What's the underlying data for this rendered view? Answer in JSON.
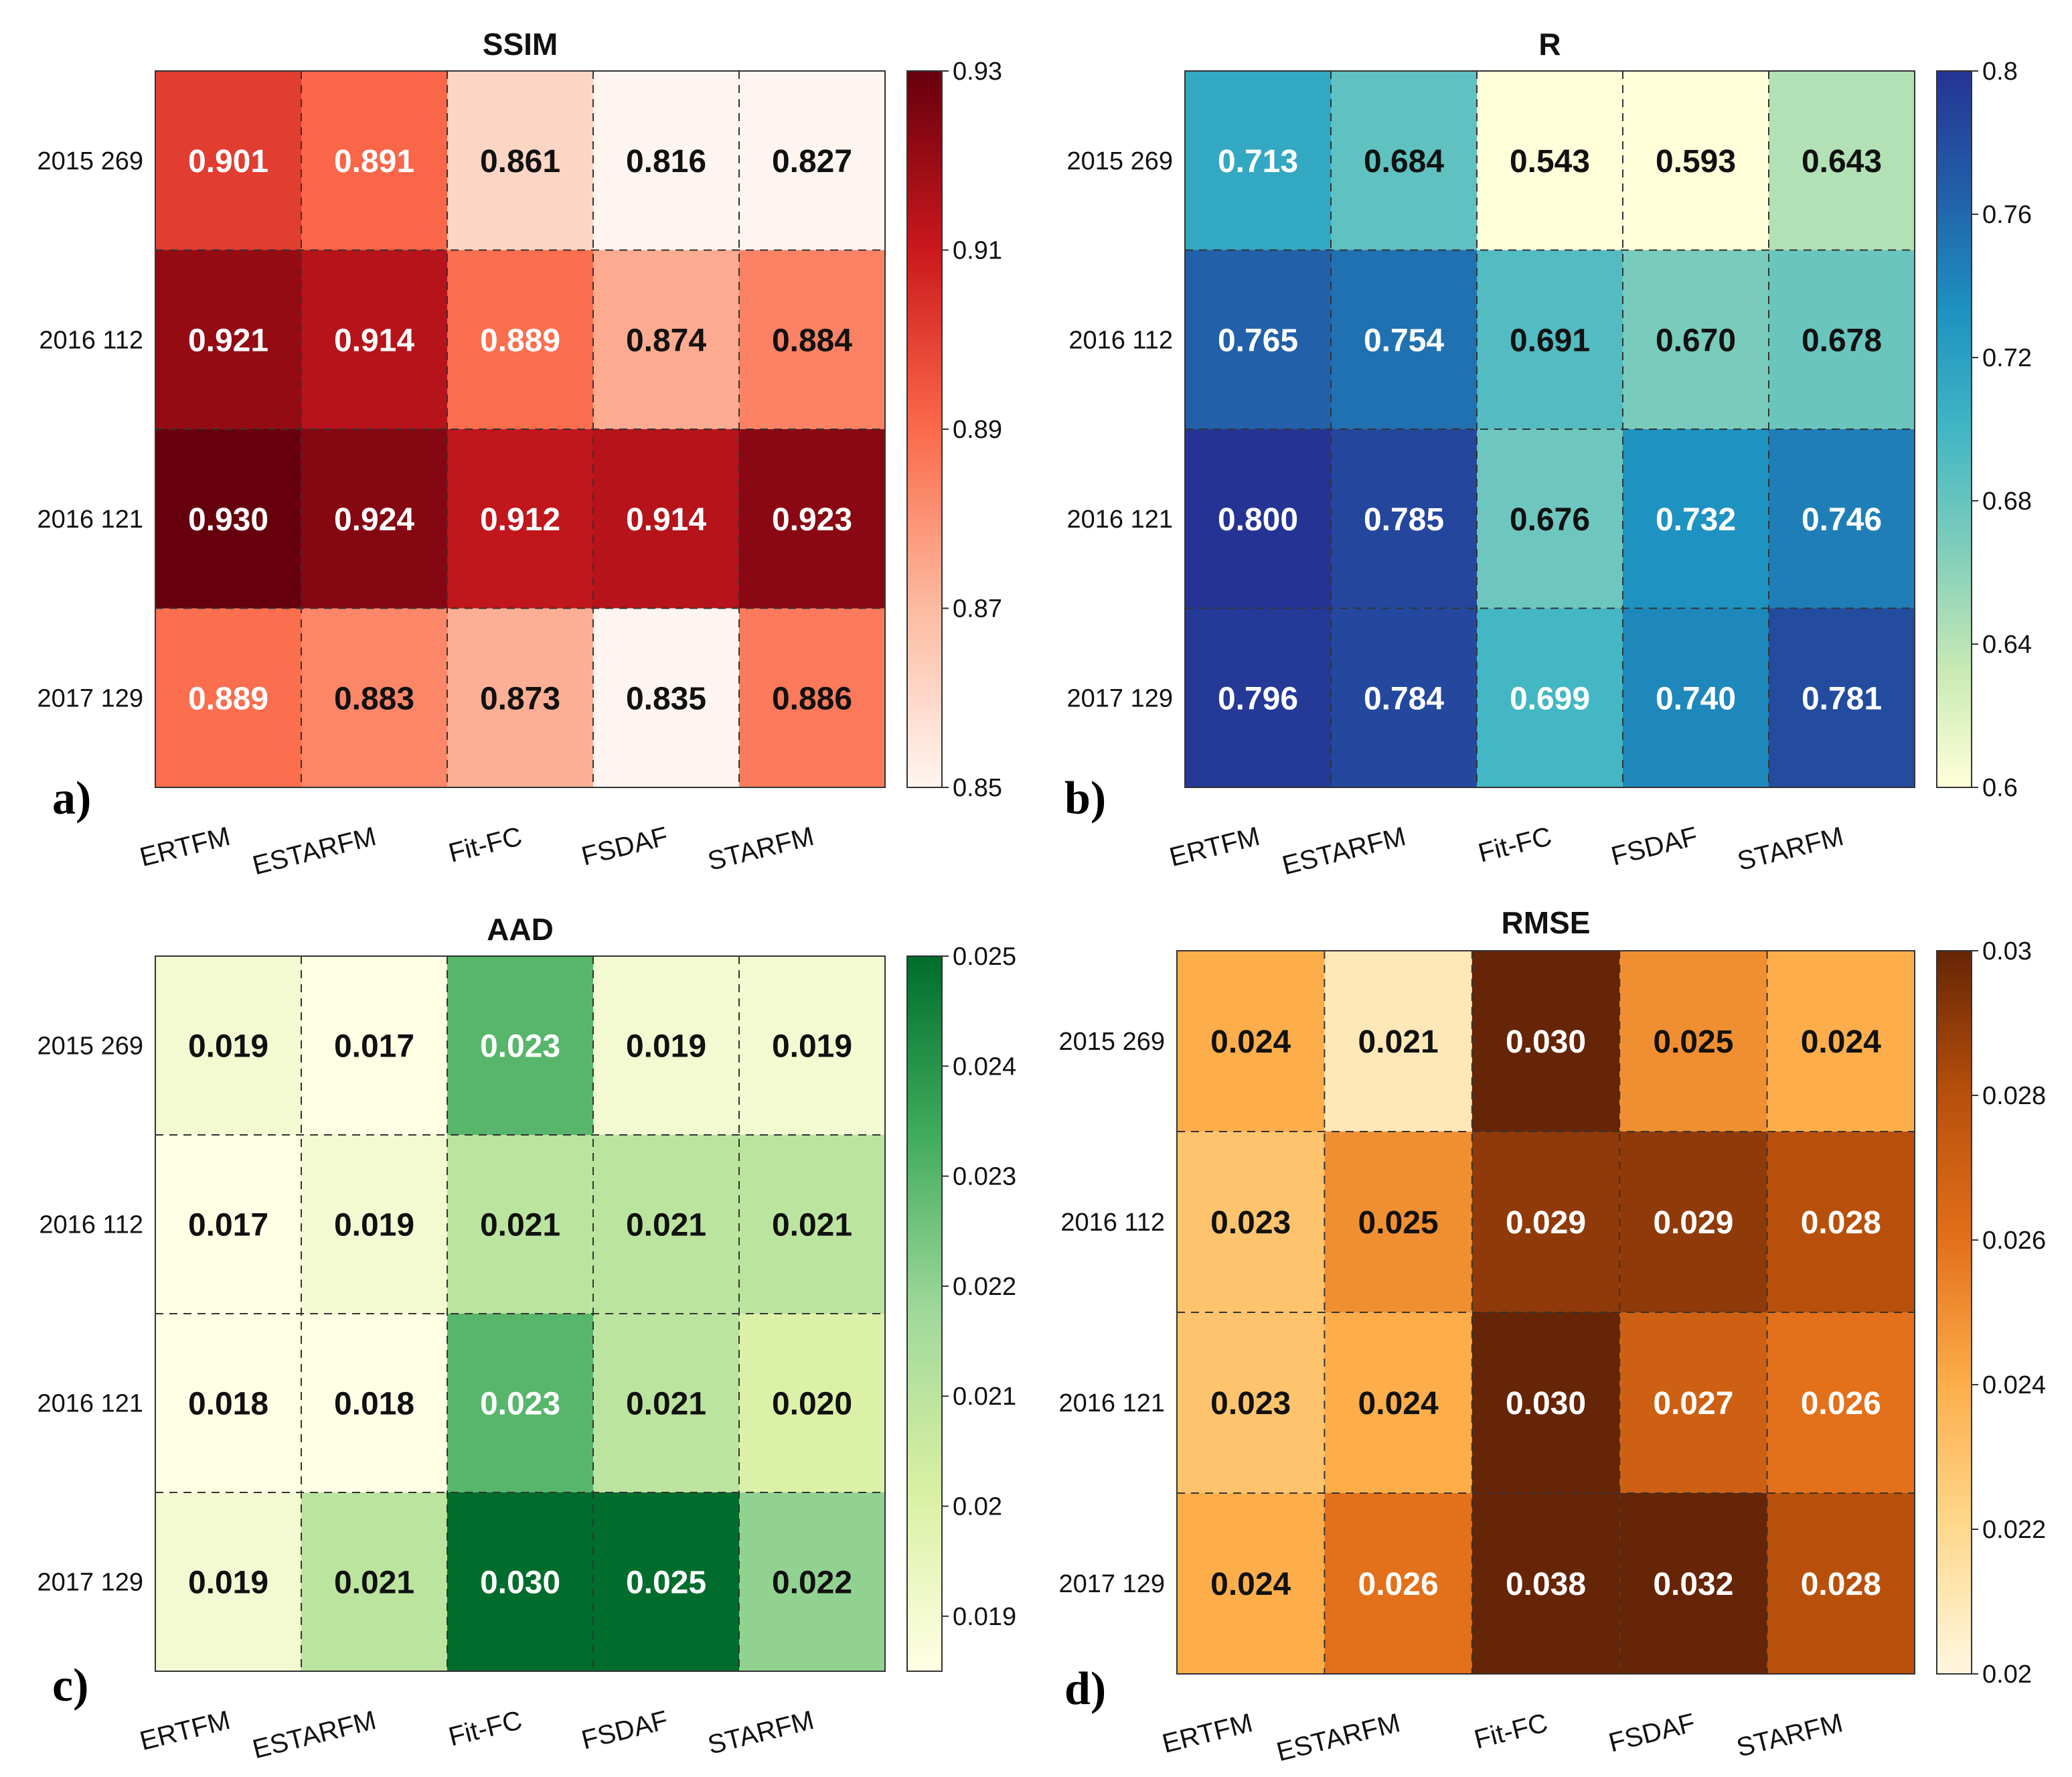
{
  "chart_data": [
    {
      "type": "heatmap",
      "panel_label": "a)",
      "title": "SSIM",
      "rows": [
        "2015 269",
        "2016 112",
        "2016 121",
        "2017 129"
      ],
      "columns": [
        "ERTFM",
        "ESTARFM",
        "Fit-FC",
        "FSDAF",
        "STARFM"
      ],
      "values": [
        [
          "0.901",
          "0.891",
          "0.861",
          "0.816",
          "0.827"
        ],
        [
          "0.921",
          "0.914",
          "0.889",
          "0.874",
          "0.884"
        ],
        [
          "0.930",
          "0.924",
          "0.912",
          "0.914",
          "0.923"
        ],
        [
          "0.889",
          "0.883",
          "0.873",
          "0.835",
          "0.886"
        ]
      ],
      "colorbar": {
        "range": [
          0.85,
          0.93
        ],
        "ticks": [
          "0.93",
          "0.91",
          "0.89",
          "0.87",
          "0.85"
        ],
        "colors": [
          "#fff5f0",
          "#fcbba1",
          "#fb6a4a",
          "#cb181d",
          "#67000d"
        ]
      }
    },
    {
      "type": "heatmap",
      "panel_label": "b)",
      "title": "R",
      "rows": [
        "2015 269",
        "2016 112",
        "2016 121",
        "2017 129"
      ],
      "columns": [
        "ERTFM",
        "ESTARFM",
        "Fit-FC",
        "FSDAF",
        "STARFM"
      ],
      "values": [
        [
          "0.713",
          "0.684",
          "0.543",
          "0.593",
          "0.643"
        ],
        [
          "0.765",
          "0.754",
          "0.691",
          "0.670",
          "0.678"
        ],
        [
          "0.800",
          "0.785",
          "0.676",
          "0.732",
          "0.746"
        ],
        [
          "0.796",
          "0.784",
          "0.699",
          "0.740",
          "0.781"
        ]
      ],
      "colorbar": {
        "range": [
          0.6,
          0.8
        ],
        "ticks": [
          "0.8",
          "0.76",
          "0.72",
          "0.68",
          "0.64",
          "0.6"
        ],
        "colors": [
          "#ffffd9",
          "#c7e9b4",
          "#7fcdbb",
          "#41b6c4",
          "#1d91c0",
          "#225ea8",
          "#253494"
        ]
      }
    },
    {
      "type": "heatmap",
      "panel_label": "c)",
      "title": "AAD",
      "rows": [
        "2015 269",
        "2016 112",
        "2016 121",
        "2017 129"
      ],
      "columns": [
        "ERTFM",
        "ESTARFM",
        "Fit-FC",
        "FSDAF",
        "STARFM"
      ],
      "values": [
        [
          "0.019",
          "0.017",
          "0.023",
          "0.019",
          "0.019"
        ],
        [
          "0.017",
          "0.019",
          "0.021",
          "0.021",
          "0.021"
        ],
        [
          "0.018",
          "0.018",
          "0.023",
          "0.021",
          "0.020"
        ],
        [
          "0.019",
          "0.021",
          "0.030",
          "0.025",
          "0.022"
        ]
      ],
      "colorbar": {
        "range": [
          0.0185,
          0.025
        ],
        "ticks": [
          "0.025",
          "0.024",
          "0.023",
          "0.022",
          "0.021",
          "0.02",
          "0.019"
        ],
        "colors": [
          "#ffffe5",
          "#d9f0a3",
          "#a1d99b",
          "#41ab5d",
          "#006d2c"
        ]
      }
    },
    {
      "type": "heatmap",
      "panel_label": "d)",
      "title": "RMSE",
      "rows": [
        "2015 269",
        "2016 112",
        "2016 121",
        "2017 129"
      ],
      "columns": [
        "ERTFM",
        "ESTARFM",
        "Fit-FC",
        "FSDAF",
        "STARFM"
      ],
      "values": [
        [
          "0.024",
          "0.021",
          "0.030",
          "0.025",
          "0.024"
        ],
        [
          "0.023",
          "0.025",
          "0.029",
          "0.029",
          "0.028"
        ],
        [
          "0.023",
          "0.024",
          "0.030",
          "0.027",
          "0.026"
        ],
        [
          "0.024",
          "0.026",
          "0.038",
          "0.032",
          "0.028"
        ]
      ],
      "colorbar": {
        "range": [
          0.02,
          0.03
        ],
        "ticks": [
          "0.03",
          "0.028",
          "0.026",
          "0.024",
          "0.022",
          "0.02"
        ],
        "colors": [
          "#fff7e0",
          "#fed98e",
          "#fdae4b",
          "#e3701a",
          "#b8500b",
          "#662506"
        ]
      }
    }
  ]
}
